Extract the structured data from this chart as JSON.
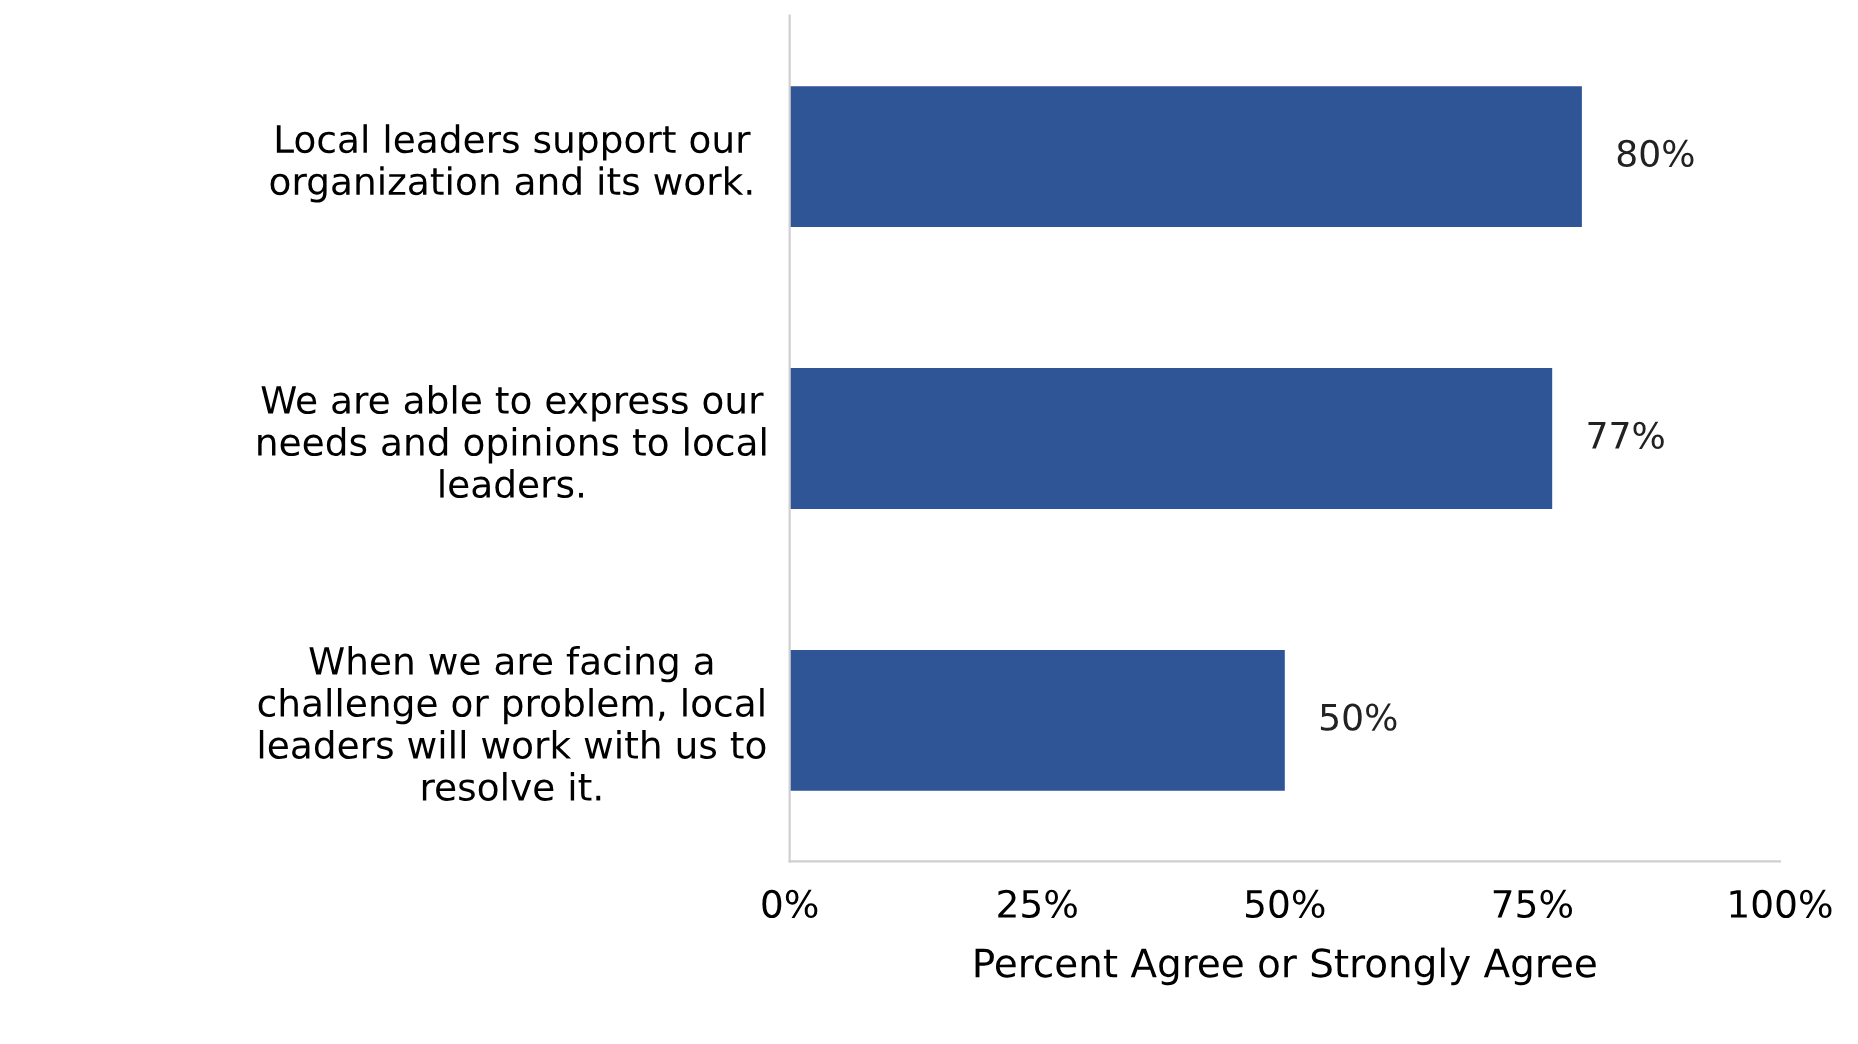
{
  "chart_data": {
    "type": "bar",
    "orientation": "horizontal",
    "xlabel": "Percent Agree or Strongly Agree",
    "categories": [
      "Local leaders support our\norganization and its work.",
      "We are able to express our\nneeds and opinions to local\nleaders.",
      "When we are facing a\nchallenge or problem, local\nleaders will work with us to\nresolve it."
    ],
    "values": [
      80,
      77,
      50
    ],
    "value_labels": [
      "80%",
      "77%",
      "50%"
    ],
    "color": "#2f5597",
    "xlim": [
      0,
      100
    ],
    "xticks": [
      {
        "value": 0,
        "label": "0%"
      },
      {
        "value": 25,
        "label": "25%"
      },
      {
        "value": 50,
        "label": "50%"
      },
      {
        "value": 75,
        "label": "75%"
      },
      {
        "value": 100,
        "label": "100%"
      }
    ],
    "grid": false,
    "legend": false
  }
}
